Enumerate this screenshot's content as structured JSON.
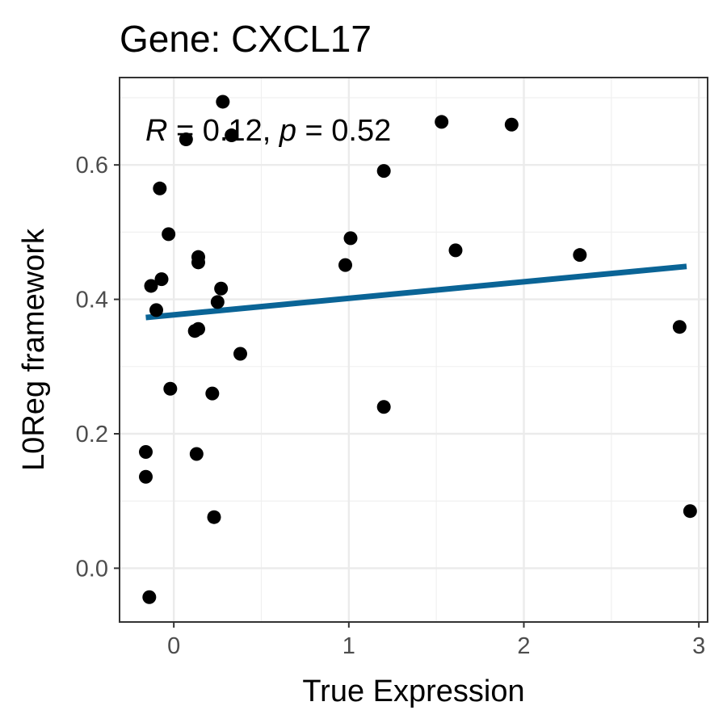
{
  "chart_data": {
    "type": "scatter",
    "title": "Gene: CXCL17",
    "xlabel": "True Expression",
    "ylabel": "L0Reg framework",
    "xlim": [
      -0.31,
      3.05
    ],
    "ylim": [
      -0.08,
      0.73
    ],
    "x_ticks": [
      0,
      1,
      2,
      3
    ],
    "x_tick_labels": [
      "0",
      "1",
      "2",
      "3"
    ],
    "y_ticks": [
      0.0,
      0.2,
      0.4,
      0.6
    ],
    "y_tick_labels": [
      "0.0",
      "0.2",
      "0.4",
      "0.6"
    ],
    "grid": true,
    "annotation": {
      "r_symbol": "R",
      "r_text": " = 0.12, ",
      "p_symbol": "p",
      "p_text": " = 0.52"
    },
    "regression_line": {
      "x": [
        -0.16,
        2.93
      ],
      "y": [
        0.373,
        0.449
      ],
      "color": "#0a6496"
    },
    "point_color": "#000000",
    "points": [
      {
        "x": 0.28,
        "y": 0.694
      },
      {
        "x": 0.07,
        "y": 0.638
      },
      {
        "x": 0.33,
        "y": 0.644
      },
      {
        "x": 1.53,
        "y": 0.664
      },
      {
        "x": 1.93,
        "y": 0.66
      },
      {
        "x": 1.2,
        "y": 0.591
      },
      {
        "x": -0.08,
        "y": 0.565
      },
      {
        "x": -0.03,
        "y": 0.497
      },
      {
        "x": 1.01,
        "y": 0.491
      },
      {
        "x": 1.61,
        "y": 0.473
      },
      {
        "x": 2.32,
        "y": 0.466
      },
      {
        "x": 0.14,
        "y": 0.463
      },
      {
        "x": 0.14,
        "y": 0.455
      },
      {
        "x": 0.98,
        "y": 0.451
      },
      {
        "x": -0.07,
        "y": 0.43
      },
      {
        "x": -0.13,
        "y": 0.42
      },
      {
        "x": 0.27,
        "y": 0.416
      },
      {
        "x": 0.25,
        "y": 0.396
      },
      {
        "x": -0.1,
        "y": 0.384
      },
      {
        "x": 2.89,
        "y": 0.359
      },
      {
        "x": 0.14,
        "y": 0.356
      },
      {
        "x": 0.12,
        "y": 0.353
      },
      {
        "x": 0.38,
        "y": 0.319
      },
      {
        "x": -0.02,
        "y": 0.267
      },
      {
        "x": 0.22,
        "y": 0.26
      },
      {
        "x": 1.2,
        "y": 0.24
      },
      {
        "x": -0.16,
        "y": 0.173
      },
      {
        "x": 0.13,
        "y": 0.17
      },
      {
        "x": -0.16,
        "y": 0.136
      },
      {
        "x": 0.23,
        "y": 0.076
      },
      {
        "x": 2.95,
        "y": 0.085
      },
      {
        "x": -0.14,
        "y": -0.043
      }
    ]
  }
}
